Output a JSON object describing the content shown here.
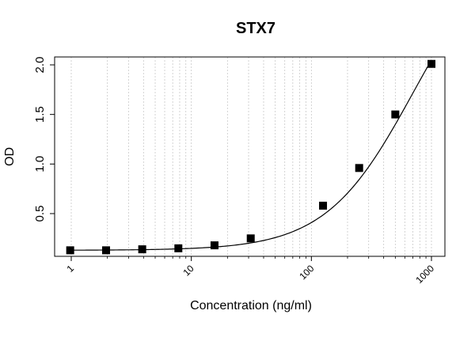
{
  "chart_data": {
    "type": "scatter",
    "title": "STX7",
    "xlabel": "Concentration (ng/ml)",
    "ylabel": "OD",
    "x_scale": "log10",
    "xlim": [
      0.9,
      1100
    ],
    "ylim": [
      0.1,
      2.1
    ],
    "x_ticks": [
      1,
      10,
      100,
      1000
    ],
    "x_tick_labels": [
      "1",
      "10",
      "100",
      "1000"
    ],
    "y_ticks": [
      0.5,
      1.0,
      1.5,
      2.0
    ],
    "y_tick_labels": [
      "0.5",
      "1.0",
      "1.5",
      "2.0"
    ],
    "grid": "vertical minor log gridlines, dotted light gray",
    "series": [
      {
        "marker": "filled-square",
        "color": "#000000",
        "points": [
          {
            "x": 0.98,
            "y": 0.13
          },
          {
            "x": 1.95,
            "y": 0.13
          },
          {
            "x": 3.9,
            "y": 0.14
          },
          {
            "x": 7.8,
            "y": 0.15
          },
          {
            "x": 15.6,
            "y": 0.18
          },
          {
            "x": 31.25,
            "y": 0.25
          },
          {
            "x": 125,
            "y": 0.58
          },
          {
            "x": 250,
            "y": 0.96
          },
          {
            "x": 500,
            "y": 1.5
          },
          {
            "x": 1000,
            "y": 2.01
          }
        ]
      }
    ],
    "fit_curve": {
      "type": "4PL",
      "color": "#000000",
      "A": 0.13,
      "D": 3.3,
      "C": 700,
      "B": 1.2
    }
  }
}
